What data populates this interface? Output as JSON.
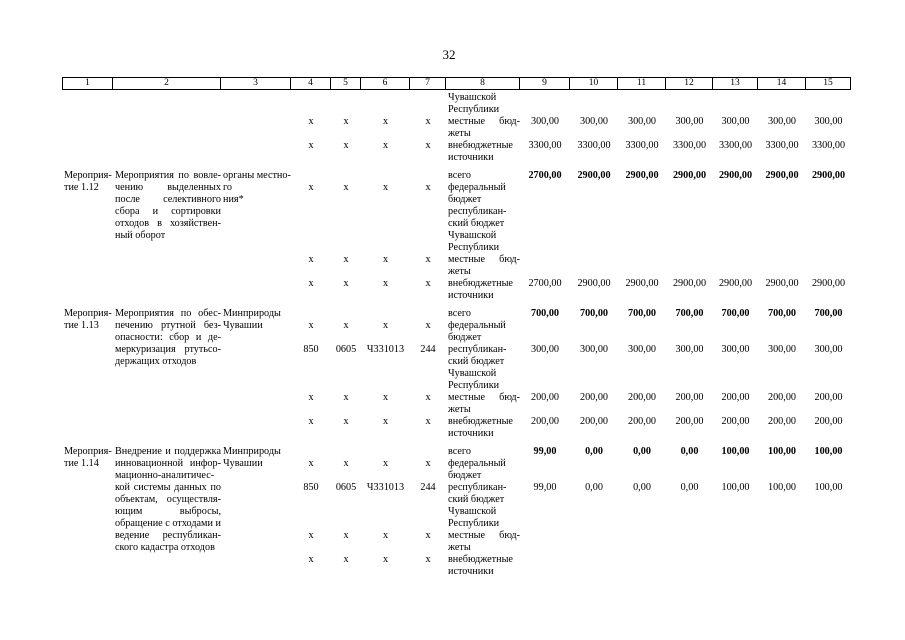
{
  "page_number": "32",
  "table": {
    "header": [
      "1",
      "2",
      "3",
      "4",
      "5",
      "6",
      "7",
      "8",
      "9",
      "10",
      "11",
      "12",
      "13",
      "14",
      "15"
    ],
    "blocks": [
      {
        "key": "continuation-block",
        "lines": [
          {
            "c": [
              "",
              "",
              "",
              "",
              "",
              "",
              "",
              "Чувашской"
            ]
          },
          {
            "c": [
              "",
              "",
              "",
              "",
              "",
              "",
              "",
              "Республики"
            ]
          },
          {
            "c": [
              "",
              "",
              "",
              "х",
              "х",
              "х",
              "х",
              "местные бюд-",
              "300,00",
              "300,00",
              "300,00",
              "300,00",
              "300,00",
              "300,00",
              "300,00"
            ],
            "j8": true
          },
          {
            "c": [
              "",
              "",
              "",
              "",
              "",
              "",
              "",
              "жеты"
            ]
          },
          {
            "c": [
              "",
              "",
              "",
              "х",
              "х",
              "х",
              "х",
              "внебюджетные",
              "3300,00",
              "3300,00",
              "3300,00",
              "3300,00",
              "3300,00",
              "3300,00",
              "3300,00"
            ]
          },
          {
            "c": [
              "",
              "",
              "",
              "",
              "",
              "",
              "",
              "источники"
            ]
          }
        ]
      },
      {
        "key": "event-1-12",
        "lines": [
          {
            "c": [
              "Мероприя-",
              "Мероприятия по вовле-",
              "органы местно-",
              "",
              "",
              "",
              "",
              "всего",
              "2700,00",
              "2900,00",
              "2900,00",
              "2900,00",
              "2900,00",
              "2900,00",
              "2900,00"
            ],
            "b": true,
            "j2": true
          },
          {
            "c": [
              "тие 1.12",
              "чению выделенных",
              "го самоуправле-",
              "х",
              "х",
              "х",
              "х",
              "федеральный"
            ],
            "j2": true
          },
          {
            "c": [
              "",
              "после селективного",
              "ния*",
              "",
              "",
              "",
              "",
              "бюджет"
            ],
            "j2": true
          },
          {
            "c": [
              "",
              "сбора и сортировки",
              "",
              "",
              "",
              "",
              "",
              "республикан-"
            ],
            "j2": true
          },
          {
            "c": [
              "",
              "отходов в хозяйствен-",
              "",
              "",
              "",
              "",
              "",
              "ский бюджет"
            ],
            "j2": true
          },
          {
            "c": [
              "",
              "ный оборот",
              "",
              "",
              "",
              "",
              "",
              "Чувашской"
            ]
          },
          {
            "c": [
              "",
              "",
              "",
              "",
              "",
              "",
              "",
              "Республики"
            ]
          },
          {
            "c": [
              "",
              "",
              "",
              "х",
              "х",
              "х",
              "х",
              "местные бюд-"
            ],
            "j8": true
          },
          {
            "c": [
              "",
              "",
              "",
              "",
              "",
              "",
              "",
              "жеты"
            ]
          },
          {
            "c": [
              "",
              "",
              "",
              "х",
              "х",
              "х",
              "х",
              "внебюджетные",
              "2700,00",
              "2900,00",
              "2900,00",
              "2900,00",
              "2900,00",
              "2900,00",
              "2900,00"
            ]
          },
          {
            "c": [
              "",
              "",
              "",
              "",
              "",
              "",
              "",
              "источники"
            ]
          }
        ]
      },
      {
        "key": "event-1-13",
        "lines": [
          {
            "c": [
              "Мероприя-",
              "Мероприятия по обес-",
              "Минприроды",
              "",
              "",
              "",
              "",
              "всего",
              "700,00",
              "700,00",
              "700,00",
              "700,00",
              "700,00",
              "700,00",
              "700,00"
            ],
            "b": true,
            "j2": true
          },
          {
            "c": [
              "тие 1.13",
              "печению ртутной без-",
              "Чувашии",
              "х",
              "х",
              "х",
              "х",
              "федеральный"
            ],
            "j2": true
          },
          {
            "c": [
              "",
              "опасности: сбор и де-",
              "",
              "",
              "",
              "",
              "",
              "бюджет"
            ],
            "j2": true
          },
          {
            "c": [
              "",
              "меркуризация ртутьсо-",
              "",
              "850",
              "0605",
              "Ч331013",
              "244",
              "республикан-",
              "300,00",
              "300,00",
              "300,00",
              "300,00",
              "300,00",
              "300,00",
              "300,00"
            ],
            "j2": true
          },
          {
            "c": [
              "",
              "держащих отходов",
              "",
              "",
              "",
              "",
              "",
              "ский бюджет"
            ]
          },
          {
            "c": [
              "",
              "",
              "",
              "",
              "",
              "",
              "",
              "Чувашской"
            ]
          },
          {
            "c": [
              "",
              "",
              "",
              "",
              "",
              "",
              "",
              "Республики"
            ]
          },
          {
            "c": [
              "",
              "",
              "",
              "х",
              "х",
              "х",
              "х",
              "местные бюд-",
              "200,00",
              "200,00",
              "200,00",
              "200,00",
              "200,00",
              "200,00",
              "200,00"
            ],
            "j8": true
          },
          {
            "c": [
              "",
              "",
              "",
              "",
              "",
              "",
              "",
              "жеты"
            ]
          },
          {
            "c": [
              "",
              "",
              "",
              "х",
              "х",
              "х",
              "х",
              "внебюджетные",
              "200,00",
              "200,00",
              "200,00",
              "200,00",
              "200,00",
              "200,00",
              "200,00"
            ]
          },
          {
            "c": [
              "",
              "",
              "",
              "",
              "",
              "",
              "",
              "источники"
            ]
          }
        ]
      },
      {
        "key": "event-1-14",
        "lines": [
          {
            "c": [
              "Мероприя-",
              "Внедрение и поддержка",
              "Минприроды",
              "",
              "",
              "",
              "",
              "всего",
              "99,00",
              "0,00",
              "0,00",
              "0,00",
              "100,00",
              "100,00",
              "100,00"
            ],
            "b": true,
            "j2": true
          },
          {
            "c": [
              "тие 1.14",
              "инновационной инфор-",
              "Чувашии",
              "х",
              "х",
              "х",
              "х",
              "федеральный"
            ],
            "j2": true
          },
          {
            "c": [
              "",
              "мационно-аналитичес-",
              "",
              "",
              "",
              "",
              "",
              "бюджет"
            ],
            "j2": true
          },
          {
            "c": [
              "",
              "кой системы данных по",
              "",
              "850",
              "0605",
              "Ч331013",
              "244",
              "республикан-",
              "99,00",
              "0,00",
              "0,00",
              "0,00",
              "100,00",
              "100,00",
              "100,00"
            ],
            "j2": true
          },
          {
            "c": [
              "",
              "объектам, осуществля-",
              "",
              "",
              "",
              "",
              "",
              "ский бюджет"
            ],
            "j2": true
          },
          {
            "c": [
              "",
              "ющим выбросы, сбросы,",
              "",
              "",
              "",
              "",
              "",
              "Чувашской"
            ],
            "j2": true
          },
          {
            "c": [
              "",
              "обращение с отходами и",
              "",
              "",
              "",
              "",
              "",
              "Республики"
            ],
            "j2": true
          },
          {
            "c": [
              "",
              "ведение республикан-",
              "",
              "х",
              "х",
              "х",
              "х",
              "местные бюд-"
            ],
            "j2": true,
            "j8": true
          },
          {
            "c": [
              "",
              "ского кадастра отходов",
              "",
              "",
              "",
              "",
              "",
              "жеты"
            ]
          },
          {
            "c": [
              "",
              "",
              "",
              "х",
              "х",
              "х",
              "х",
              "внебюджетные"
            ]
          },
          {
            "c": [
              "",
              "",
              "",
              "",
              "",
              "",
              "",
              "источники"
            ]
          }
        ]
      }
    ]
  }
}
